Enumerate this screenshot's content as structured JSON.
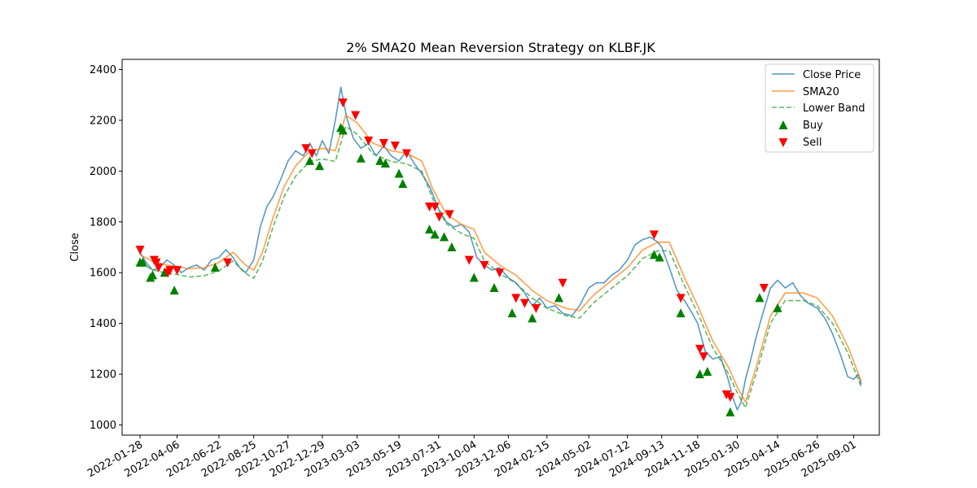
{
  "chart_data": {
    "type": "line",
    "title": "2% SMA20 Mean Reversion Strategy on KLBF.JK",
    "xlabel": "",
    "ylabel": "Close",
    "xlim": [
      "2021-12-26",
      "2025-10-18"
    ],
    "ylim": [
      960,
      2440
    ],
    "yticks": [
      1000,
      1200,
      1400,
      1600,
      1800,
      2000,
      2200,
      2400
    ],
    "xticks": [
      "2022-01-28",
      "2022-04-06",
      "2022-06-22",
      "2022-08-25",
      "2022-10-27",
      "2022-12-29",
      "2023-03-03",
      "2023-05-19",
      "2023-07-31",
      "2023-10-04",
      "2023-12-06",
      "2024-02-15",
      "2024-05-02",
      "2024-07-12",
      "2024-09-13",
      "2024-11-18",
      "2025-01-30",
      "2025-04-14",
      "2025-06-26",
      "2025-09-01"
    ],
    "grid": false,
    "legend_position": "top-right",
    "series": [
      {
        "name": "Close Price",
        "style": "solid",
        "color": "#1f77b4",
        "points": [
          [
            "2022-01-28",
            1680
          ],
          [
            "2022-02-08",
            1640
          ],
          [
            "2022-02-20",
            1610
          ],
          [
            "2022-03-05",
            1620
          ],
          [
            "2022-03-18",
            1650
          ],
          [
            "2022-04-01",
            1630
          ],
          [
            "2022-04-14",
            1600
          ],
          [
            "2022-04-28",
            1620
          ],
          [
            "2022-05-12",
            1630
          ],
          [
            "2022-05-26",
            1610
          ],
          [
            "2022-06-08",
            1650
          ],
          [
            "2022-06-22",
            1660
          ],
          [
            "2022-07-05",
            1690
          ],
          [
            "2022-07-18",
            1660
          ],
          [
            "2022-07-30",
            1620
          ],
          [
            "2022-08-10",
            1600
          ],
          [
            "2022-08-25",
            1650
          ],
          [
            "2022-09-06",
            1780
          ],
          [
            "2022-09-18",
            1860
          ],
          [
            "2022-09-30",
            1900
          ],
          [
            "2022-10-12",
            1960
          ],
          [
            "2022-10-27",
            2040
          ],
          [
            "2022-11-10",
            2080
          ],
          [
            "2022-11-24",
            2060
          ],
          [
            "2022-12-06",
            2110
          ],
          [
            "2022-12-18",
            2060
          ],
          [
            "2022-12-29",
            2120
          ],
          [
            "2023-01-10",
            2070
          ],
          [
            "2023-01-22",
            2200
          ],
          [
            "2023-02-01",
            2330
          ],
          [
            "2023-02-12",
            2210
          ],
          [
            "2023-02-24",
            2130
          ],
          [
            "2023-03-10",
            2090
          ],
          [
            "2023-03-24",
            2110
          ],
          [
            "2023-04-07",
            2060
          ],
          [
            "2023-04-21",
            2100
          ],
          [
            "2023-05-05",
            2060
          ],
          [
            "2023-05-19",
            2040
          ],
          [
            "2023-06-02",
            2080
          ],
          [
            "2023-06-16",
            2030
          ],
          [
            "2023-06-30",
            1990
          ],
          [
            "2023-07-14",
            1940
          ],
          [
            "2023-07-31",
            1850
          ],
          [
            "2023-08-14",
            1800
          ],
          [
            "2023-08-28",
            1780
          ],
          [
            "2023-09-11",
            1790
          ],
          [
            "2023-09-25",
            1760
          ],
          [
            "2023-10-09",
            1660
          ],
          [
            "2023-10-23",
            1630
          ],
          [
            "2023-11-06",
            1610
          ],
          [
            "2023-11-20",
            1620
          ],
          [
            "2023-12-06",
            1580
          ],
          [
            "2023-12-20",
            1560
          ],
          [
            "2024-01-05",
            1520
          ],
          [
            "2024-01-19",
            1470
          ],
          [
            "2024-02-02",
            1500
          ],
          [
            "2024-02-15",
            1460
          ],
          [
            "2024-03-01",
            1470
          ],
          [
            "2024-03-15",
            1440
          ],
          [
            "2024-04-01",
            1430
          ],
          [
            "2024-04-15",
            1470
          ],
          [
            "2024-05-02",
            1540
          ],
          [
            "2024-05-16",
            1560
          ],
          [
            "2024-05-30",
            1560
          ],
          [
            "2024-06-13",
            1590
          ],
          [
            "2024-06-27",
            1610
          ],
          [
            "2024-07-12",
            1650
          ],
          [
            "2024-07-26",
            1710
          ],
          [
            "2024-08-09",
            1730
          ],
          [
            "2024-08-23",
            1740
          ],
          [
            "2024-09-06",
            1720
          ],
          [
            "2024-09-13",
            1700
          ],
          [
            "2024-09-27",
            1620
          ],
          [
            "2024-10-11",
            1530
          ],
          [
            "2024-10-25",
            1490
          ],
          [
            "2024-11-08",
            1440
          ],
          [
            "2024-11-18",
            1400
          ],
          [
            "2024-12-02",
            1290
          ],
          [
            "2024-12-16",
            1260
          ],
          [
            "2024-12-30",
            1270
          ],
          [
            "2025-01-13",
            1180
          ],
          [
            "2025-01-23",
            1100
          ],
          [
            "2025-01-30",
            1060
          ],
          [
            "2025-02-06",
            1090
          ],
          [
            "2025-02-14",
            1180
          ],
          [
            "2025-02-24",
            1260
          ],
          [
            "2025-03-06",
            1350
          ],
          [
            "2025-03-18",
            1440
          ],
          [
            "2025-04-01",
            1540
          ],
          [
            "2025-04-14",
            1570
          ],
          [
            "2025-04-28",
            1540
          ],
          [
            "2025-05-12",
            1560
          ],
          [
            "2025-05-26",
            1510
          ],
          [
            "2025-06-09",
            1480
          ],
          [
            "2025-06-26",
            1460
          ],
          [
            "2025-07-10",
            1420
          ],
          [
            "2025-07-24",
            1360
          ],
          [
            "2025-08-07",
            1280
          ],
          [
            "2025-08-21",
            1190
          ],
          [
            "2025-09-01",
            1180
          ],
          [
            "2025-09-09",
            1200
          ],
          [
            "2025-09-15",
            1160
          ]
        ]
      },
      {
        "name": "SMA20",
        "style": "solid",
        "color": "#ff7f0e",
        "points": [
          [
            "2022-01-28",
            1670
          ],
          [
            "2022-02-20",
            1645
          ],
          [
            "2022-03-18",
            1630
          ],
          [
            "2022-04-06",
            1625
          ],
          [
            "2022-04-28",
            1615
          ],
          [
            "2022-05-26",
            1620
          ],
          [
            "2022-06-22",
            1640
          ],
          [
            "2022-07-18",
            1680
          ],
          [
            "2022-08-10",
            1630
          ],
          [
            "2022-08-25",
            1610
          ],
          [
            "2022-09-10",
            1680
          ],
          [
            "2022-09-30",
            1820
          ],
          [
            "2022-10-20",
            1940
          ],
          [
            "2022-11-10",
            2020
          ],
          [
            "2022-12-06",
            2080
          ],
          [
            "2022-12-29",
            2090
          ],
          [
            "2023-01-22",
            2080
          ],
          [
            "2023-02-10",
            2220
          ],
          [
            "2023-03-03",
            2190
          ],
          [
            "2023-04-01",
            2110
          ],
          [
            "2023-05-05",
            2080
          ],
          [
            "2023-06-02",
            2070
          ],
          [
            "2023-06-30",
            2040
          ],
          [
            "2023-07-20",
            1930
          ],
          [
            "2023-08-14",
            1830
          ],
          [
            "2023-09-11",
            1790
          ],
          [
            "2023-10-04",
            1770
          ],
          [
            "2023-10-23",
            1680
          ],
          [
            "2023-11-20",
            1630
          ],
          [
            "2023-12-20",
            1590
          ],
          [
            "2024-01-19",
            1530
          ],
          [
            "2024-02-15",
            1490
          ],
          [
            "2024-03-20",
            1460
          ],
          [
            "2024-04-15",
            1450
          ],
          [
            "2024-05-10",
            1510
          ],
          [
            "2024-06-13",
            1570
          ],
          [
            "2024-07-12",
            1620
          ],
          [
            "2024-08-09",
            1690
          ],
          [
            "2024-09-06",
            1720
          ],
          [
            "2024-09-27",
            1720
          ],
          [
            "2024-10-25",
            1580
          ],
          [
            "2024-11-18",
            1470
          ],
          [
            "2024-12-16",
            1330
          ],
          [
            "2025-01-13",
            1230
          ],
          [
            "2025-01-30",
            1150
          ],
          [
            "2025-02-14",
            1090
          ],
          [
            "2025-03-06",
            1230
          ],
          [
            "2025-04-01",
            1430
          ],
          [
            "2025-04-28",
            1520
          ],
          [
            "2025-06-01",
            1520
          ],
          [
            "2025-06-26",
            1500
          ],
          [
            "2025-07-24",
            1430
          ],
          [
            "2025-08-21",
            1310
          ],
          [
            "2025-09-15",
            1170
          ]
        ]
      },
      {
        "name": "Lower Band",
        "style": "dashed",
        "color": "#2ca02c",
        "points": [
          [
            "2022-01-28",
            1637
          ],
          [
            "2022-02-20",
            1612
          ],
          [
            "2022-03-18",
            1597
          ],
          [
            "2022-04-06",
            1593
          ],
          [
            "2022-04-28",
            1583
          ],
          [
            "2022-05-26",
            1588
          ],
          [
            "2022-06-22",
            1607
          ],
          [
            "2022-07-18",
            1646
          ],
          [
            "2022-08-10",
            1597
          ],
          [
            "2022-08-25",
            1578
          ],
          [
            "2022-09-10",
            1646
          ],
          [
            "2022-09-30",
            1784
          ],
          [
            "2022-10-20",
            1901
          ],
          [
            "2022-11-10",
            1980
          ],
          [
            "2022-12-06",
            2038
          ],
          [
            "2022-12-29",
            2048
          ],
          [
            "2023-01-22",
            2038
          ],
          [
            "2023-02-10",
            2176
          ],
          [
            "2023-03-03",
            2146
          ],
          [
            "2023-04-01",
            2068
          ],
          [
            "2023-05-05",
            2038
          ],
          [
            "2023-06-02",
            2029
          ],
          [
            "2023-06-30",
            1999
          ],
          [
            "2023-07-20",
            1891
          ],
          [
            "2023-08-14",
            1793
          ],
          [
            "2023-09-11",
            1754
          ],
          [
            "2023-10-04",
            1735
          ],
          [
            "2023-10-23",
            1646
          ],
          [
            "2023-11-20",
            1597
          ],
          [
            "2023-12-20",
            1558
          ],
          [
            "2024-01-19",
            1499
          ],
          [
            "2024-02-15",
            1460
          ],
          [
            "2024-03-20",
            1431
          ],
          [
            "2024-04-15",
            1421
          ],
          [
            "2024-05-10",
            1480
          ],
          [
            "2024-06-13",
            1539
          ],
          [
            "2024-07-12",
            1588
          ],
          [
            "2024-08-09",
            1656
          ],
          [
            "2024-09-06",
            1686
          ],
          [
            "2024-09-27",
            1686
          ],
          [
            "2024-10-25",
            1548
          ],
          [
            "2024-11-18",
            1441
          ],
          [
            "2024-12-16",
            1303
          ],
          [
            "2025-01-13",
            1205
          ],
          [
            "2025-01-30",
            1127
          ],
          [
            "2025-02-14",
            1068
          ],
          [
            "2025-03-06",
            1205
          ],
          [
            "2025-04-01",
            1401
          ],
          [
            "2025-04-28",
            1490
          ],
          [
            "2025-06-01",
            1490
          ],
          [
            "2025-06-26",
            1470
          ],
          [
            "2025-07-24",
            1401
          ],
          [
            "2025-08-21",
            1284
          ],
          [
            "2025-09-15",
            1147
          ]
        ]
      }
    ],
    "buy_signals": {
      "name": "Buy",
      "marker": "triangle-up",
      "color": "#008000",
      "points": [
        [
          "2022-01-28",
          1640
        ],
        [
          "2022-02-02",
          1640
        ],
        [
          "2022-02-16",
          1580
        ],
        [
          "2022-02-20",
          1590
        ],
        [
          "2022-03-14",
          1600
        ],
        [
          "2022-04-01",
          1530
        ],
        [
          "2022-06-15",
          1620
        ],
        [
          "2022-12-06",
          2040
        ],
        [
          "2022-12-24",
          2020
        ],
        [
          "2023-02-01",
          2170
        ],
        [
          "2023-02-05",
          2160
        ],
        [
          "2023-03-10",
          2050
        ],
        [
          "2023-04-14",
          2040
        ],
        [
          "2023-04-24",
          2030
        ],
        [
          "2023-05-19",
          1990
        ],
        [
          "2023-05-26",
          1950
        ],
        [
          "2023-07-14",
          1770
        ],
        [
          "2023-07-24",
          1750
        ],
        [
          "2023-08-10",
          1740
        ],
        [
          "2023-08-24",
          1700
        ],
        [
          "2023-10-04",
          1580
        ],
        [
          "2023-11-10",
          1540
        ],
        [
          "2023-12-13",
          1440
        ],
        [
          "2024-01-19",
          1420
        ],
        [
          "2024-03-08",
          1500
        ],
        [
          "2024-08-30",
          1670
        ],
        [
          "2024-09-09",
          1660
        ],
        [
          "2024-10-18",
          1440
        ],
        [
          "2024-11-22",
          1200
        ],
        [
          "2024-12-06",
          1210
        ],
        [
          "2025-01-17",
          1050
        ],
        [
          "2025-03-12",
          1500
        ],
        [
          "2025-04-14",
          1460
        ]
      ]
    },
    "sell_signals": {
      "name": "Sell",
      "marker": "triangle-down",
      "color": "#ff0000",
      "points": [
        [
          "2022-01-28",
          1690
        ],
        [
          "2022-02-23",
          1650
        ],
        [
          "2022-02-27",
          1640
        ],
        [
          "2022-03-03",
          1620
        ],
        [
          "2022-03-20",
          1600
        ],
        [
          "2022-03-24",
          1610
        ],
        [
          "2022-04-06",
          1610
        ],
        [
          "2022-07-08",
          1640
        ],
        [
          "2022-11-29",
          2090
        ],
        [
          "2022-12-10",
          2070
        ],
        [
          "2023-02-05",
          2270
        ],
        [
          "2023-02-28",
          2220
        ],
        [
          "2023-03-24",
          2120
        ],
        [
          "2023-04-21",
          2110
        ],
        [
          "2023-05-12",
          2100
        ],
        [
          "2023-06-02",
          2070
        ],
        [
          "2023-07-14",
          1860
        ],
        [
          "2023-07-24",
          1860
        ],
        [
          "2023-08-01",
          1820
        ],
        [
          "2023-08-20",
          1830
        ],
        [
          "2023-09-25",
          1650
        ],
        [
          "2023-10-23",
          1630
        ],
        [
          "2023-11-20",
          1600
        ],
        [
          "2023-12-20",
          1500
        ],
        [
          "2024-01-05",
          1480
        ],
        [
          "2024-01-26",
          1460
        ],
        [
          "2024-03-15",
          1560
        ],
        [
          "2024-08-30",
          1750
        ],
        [
          "2024-10-18",
          1500
        ],
        [
          "2024-11-22",
          1300
        ],
        [
          "2024-11-29",
          1270
        ],
        [
          "2025-01-10",
          1120
        ],
        [
          "2025-01-17",
          1110
        ],
        [
          "2025-03-20",
          1540
        ]
      ]
    }
  }
}
